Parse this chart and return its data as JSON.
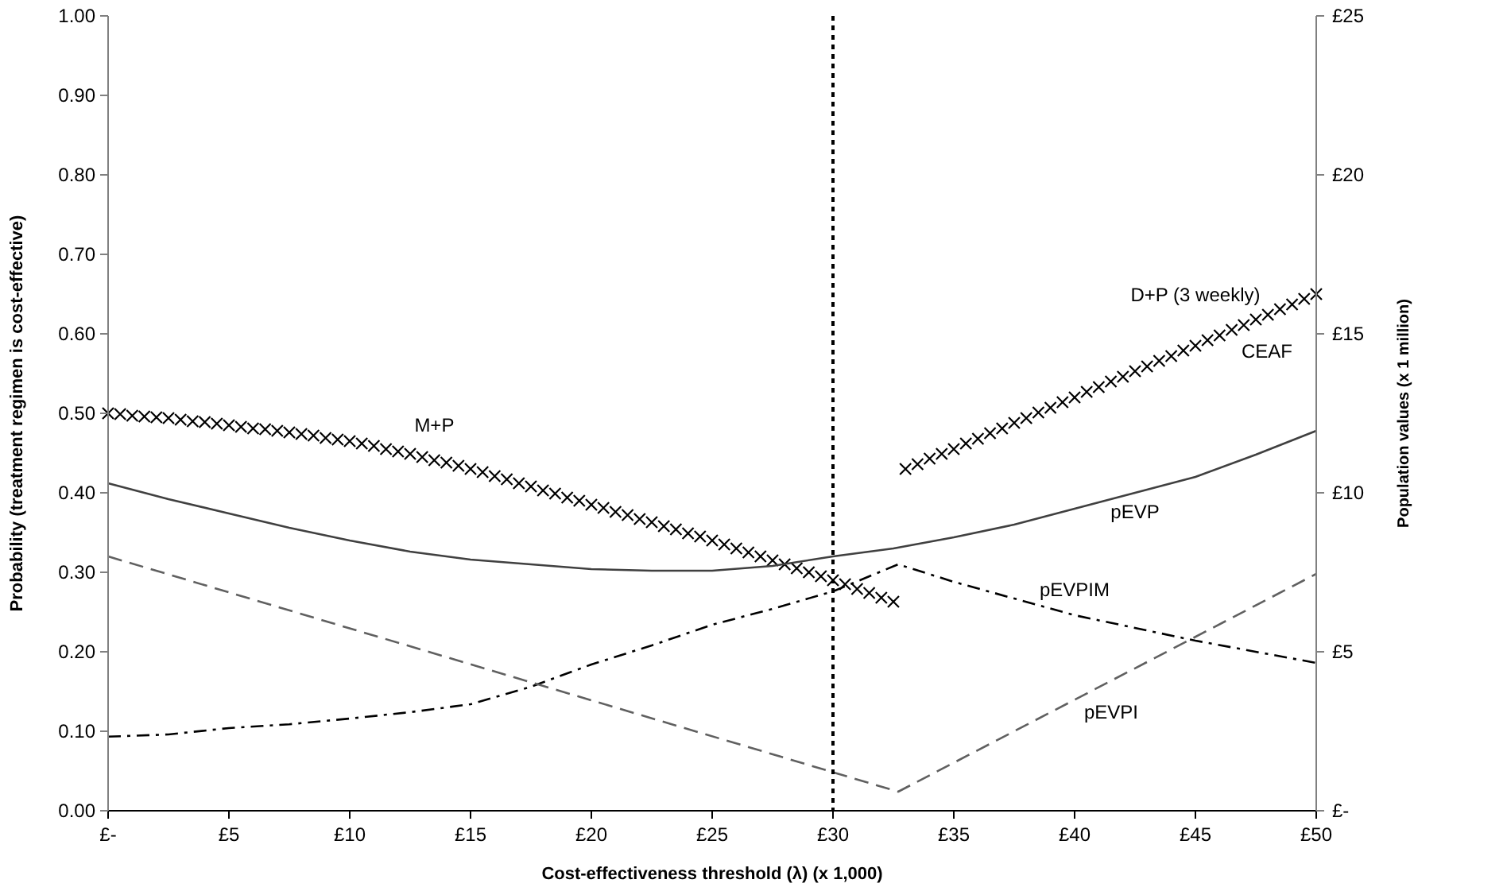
{
  "chart_data": {
    "type": "line",
    "xlabel": "Cost-effectiveness threshold (λ) (x 1,000)",
    "ylabel": "Probability (treatment regimen is cost-effective)",
    "y2label": "Population values (x 1 million)",
    "xlim": [
      0,
      50
    ],
    "xticks": [
      {
        "value": 0,
        "label": "£-"
      },
      {
        "value": 5,
        "label": "£5"
      },
      {
        "value": 10,
        "label": "£10"
      },
      {
        "value": 15,
        "label": "£15"
      },
      {
        "value": 20,
        "label": "£20"
      },
      {
        "value": 25,
        "label": "£25"
      },
      {
        "value": 30,
        "label": "£30"
      },
      {
        "value": 35,
        "label": "£35"
      },
      {
        "value": 40,
        "label": "£40"
      },
      {
        "value": 45,
        "label": "£45"
      },
      {
        "value": 50,
        "label": "£50"
      }
    ],
    "ylim": [
      0,
      1
    ],
    "yticks": [
      {
        "value": 0,
        "label": "0.00"
      },
      {
        "value": 0.1,
        "label": "0.10"
      },
      {
        "value": 0.2,
        "label": "0.20"
      },
      {
        "value": 0.3,
        "label": "0.30"
      },
      {
        "value": 0.4,
        "label": "0.40"
      },
      {
        "value": 0.5,
        "label": "0.50"
      },
      {
        "value": 0.6,
        "label": "0.60"
      },
      {
        "value": 0.7,
        "label": "0.70"
      },
      {
        "value": 0.8,
        "label": "0.80"
      },
      {
        "value": 0.9,
        "label": "0.90"
      },
      {
        "value": 1,
        "label": "1.00"
      }
    ],
    "y2lim": [
      0,
      25
    ],
    "y2ticks": [
      {
        "value": 0,
        "label": "£-"
      },
      {
        "value": 5,
        "label": "£5"
      },
      {
        "value": 10,
        "label": "£10"
      },
      {
        "value": 15,
        "label": "£15"
      },
      {
        "value": 20,
        "label": "£20"
      },
      {
        "value": 25,
        "label": "£25"
      }
    ],
    "grid": false,
    "legend": false,
    "ref_lines": [
      {
        "axis": "x",
        "value": 30,
        "color": "#000000",
        "line_style": "dotted"
      }
    ],
    "annotations": [
      "CEAF"
    ],
    "series": [
      {
        "name": "M+P",
        "type": "scatter",
        "marker": "cross",
        "color": "#000000",
        "x": [
          0,
          0.5,
          1,
          1.5,
          2,
          2.5,
          3,
          3.5,
          4,
          4.5,
          5,
          5.5,
          6,
          6.5,
          7,
          7.5,
          8,
          8.5,
          9,
          9.5,
          10,
          10.5,
          11,
          11.5,
          12,
          12.5,
          13,
          13.5,
          14,
          14.5,
          15,
          15.5,
          16,
          16.5,
          17,
          17.5,
          18,
          18.5,
          19,
          19.5,
          20,
          20.5,
          21,
          21.5,
          22,
          22.5,
          23,
          23.5,
          24,
          24.5,
          25,
          25.5,
          26,
          26.5,
          27,
          27.5,
          28,
          28.5,
          29,
          29.5,
          30,
          30.5,
          31,
          31.5,
          32,
          32.5
        ],
        "values": [
          0.5,
          0.499,
          0.497,
          0.496,
          0.495,
          0.494,
          0.492,
          0.49,
          0.489,
          0.487,
          0.485,
          0.483,
          0.481,
          0.48,
          0.478,
          0.476,
          0.474,
          0.472,
          0.469,
          0.467,
          0.465,
          0.462,
          0.459,
          0.455,
          0.452,
          0.449,
          0.445,
          0.441,
          0.438,
          0.434,
          0.43,
          0.426,
          0.421,
          0.417,
          0.412,
          0.408,
          0.403,
          0.399,
          0.394,
          0.39,
          0.385,
          0.381,
          0.376,
          0.372,
          0.367,
          0.363,
          0.358,
          0.354,
          0.349,
          0.345,
          0.34,
          0.335,
          0.33,
          0.325,
          0.32,
          0.315,
          0.31,
          0.305,
          0.3,
          0.295,
          0.29,
          0.285,
          0.279,
          0.274,
          0.268,
          0.263
        ]
      },
      {
        "name": "D+P (3 weekly)",
        "type": "scatter",
        "marker": "cross",
        "color": "#000000",
        "x": [
          33,
          33.5,
          34,
          34.5,
          35,
          35.5,
          36,
          36.5,
          37,
          37.5,
          38,
          38.5,
          39,
          39.5,
          40,
          40.5,
          41,
          41.5,
          42,
          42.5,
          43,
          43.5,
          44,
          44.5,
          45,
          45.5,
          46,
          46.5,
          47,
          47.5,
          48,
          48.5,
          49,
          49.5,
          50
        ],
        "values": [
          0.43,
          0.436,
          0.443,
          0.449,
          0.455,
          0.462,
          0.468,
          0.475,
          0.481,
          0.488,
          0.494,
          0.501,
          0.507,
          0.514,
          0.52,
          0.527,
          0.533,
          0.54,
          0.546,
          0.553,
          0.559,
          0.566,
          0.572,
          0.579,
          0.585,
          0.592,
          0.598,
          0.605,
          0.611,
          0.618,
          0.624,
          0.631,
          0.637,
          0.644,
          0.65
        ]
      },
      {
        "name": "pEVP",
        "axis": "y2",
        "line_style": "solid",
        "color": "#404040",
        "x": [
          0,
          2.5,
          5,
          7.5,
          10,
          12.5,
          15,
          17.5,
          20,
          22.5,
          25,
          27.5,
          30,
          32.5,
          35,
          37.5,
          40,
          42.5,
          45,
          47.5,
          50
        ],
        "values": [
          10.3,
          9.8,
          9.35,
          8.9,
          8.5,
          8.15,
          7.9,
          7.75,
          7.6,
          7.55,
          7.55,
          7.7,
          8.0,
          8.25,
          8.6,
          9.0,
          9.5,
          10.0,
          10.5,
          11.2,
          11.95
        ]
      },
      {
        "name": "pEVPIM",
        "axis": "y2",
        "line_style": "dashdot",
        "color": "#000000",
        "x": [
          0,
          2.5,
          5,
          7.5,
          10,
          12.5,
          15,
          17.5,
          20,
          22.5,
          25,
          27.5,
          30,
          32.7,
          35,
          40,
          45,
          50
        ],
        "values": [
          2.33,
          2.4,
          2.6,
          2.72,
          2.9,
          3.1,
          3.35,
          3.9,
          4.6,
          5.2,
          5.85,
          6.35,
          6.9,
          7.75,
          7.2,
          6.15,
          5.35,
          4.65
        ]
      },
      {
        "name": "pEVPI",
        "axis": "y2",
        "line_style": "dashed",
        "color": "#606060",
        "x": [
          0,
          32.7,
          50
        ],
        "values": [
          8.0,
          0.6,
          7.45
        ]
      }
    ]
  }
}
